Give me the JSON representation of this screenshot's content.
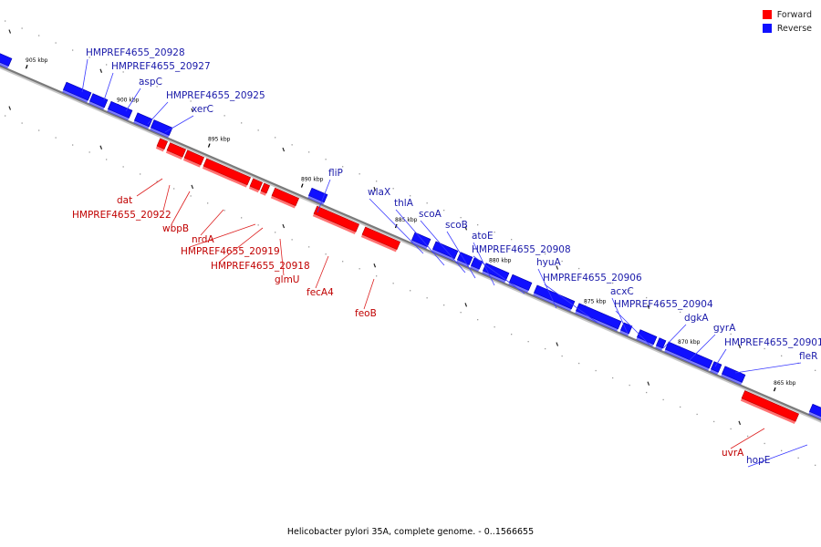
{
  "caption": "Helicobacter pylori 35A, complete genome. - 0..1566655",
  "legend": [
    {
      "label": "Forward",
      "color": "#ff0000"
    },
    {
      "label": "Reverse",
      "color": "#1010ff"
    }
  ],
  "colors": {
    "forward": "#ff0000",
    "reverse": "#1010ff",
    "forward_label": "#c00000",
    "reverse_label": "#1a1aaa",
    "backbone": "#7a7a7a"
  },
  "ticks": [
    {
      "kbp": 905,
      "label": "905 kbp"
    },
    {
      "kbp": 900,
      "label": "900 kbp"
    },
    {
      "kbp": 895,
      "label": "895 kbp"
    },
    {
      "kbp": 890,
      "label": "890 kbp"
    },
    {
      "kbp": 885,
      "label": "885 kbp"
    },
    {
      "kbp": 880,
      "label": "880 kbp"
    },
    {
      "kbp": 875,
      "label": "875 kbp"
    },
    {
      "kbp": 870,
      "label": "870 kbp"
    },
    {
      "kbp": 865,
      "label": "865 kbp"
    }
  ],
  "reverse_genes": [
    "HMPREF4655_20928",
    "HMPREF4655_20927",
    "aspC",
    "HMPREF4655_20925",
    "xerC",
    "fliP",
    "wlaX",
    "thlA",
    "scoA",
    "scoB",
    "atoE",
    "HMPREF4655_20908",
    "hyuA",
    "HMPREF4655_20906",
    "acxC",
    "HMPREF4655_20904",
    "dgkA",
    "gyrA",
    "HMPREF4655_20901",
    "fleR",
    "hopE"
  ],
  "forward_genes": [
    "dat",
    "HMPREF4655_20922",
    "wbpB",
    "nrdA",
    "HMPREF4655_20919",
    "HMPREF4655_20918",
    "glmU",
    "fecA4",
    "feoB",
    "uvrA"
  ]
}
